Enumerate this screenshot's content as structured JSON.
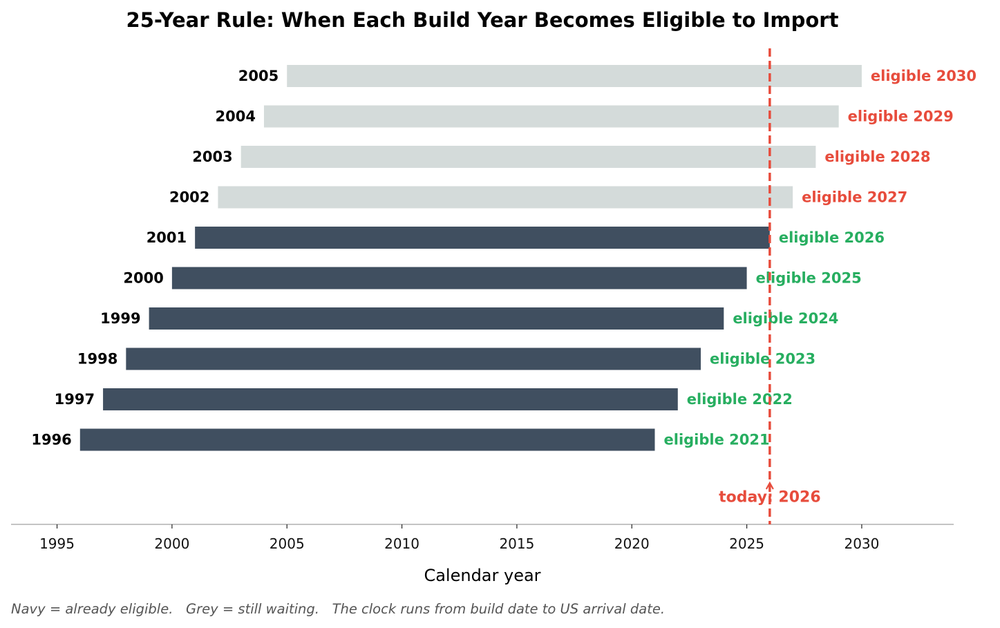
{
  "chart_data": {
    "type": "bar",
    "orientation": "horizontal",
    "title": "25-Year Rule: When Each Build Year Becomes Eligible to Import",
    "xlabel": "Calendar year",
    "ylabel": "",
    "xlim": [
      1993,
      2034
    ],
    "xticks": [
      1995,
      2000,
      2005,
      2010,
      2015,
      2020,
      2025,
      2030
    ],
    "grid": false,
    "categories": [
      "1996",
      "1997",
      "1998",
      "1999",
      "2000",
      "2001",
      "2002",
      "2003",
      "2004",
      "2005"
    ],
    "series": [
      {
        "values": [
          {
            "start": 1996,
            "end": 2021
          },
          {
            "start": 1997,
            "end": 2022
          },
          {
            "start": 1998,
            "end": 2023
          },
          {
            "start": 1999,
            "end": 2024
          },
          {
            "start": 2000,
            "end": 2025
          },
          {
            "start": 2001,
            "end": 2026
          },
          {
            "start": 2002,
            "end": 2027
          },
          {
            "start": 2003,
            "end": 2028
          },
          {
            "start": 2004,
            "end": 2029
          },
          {
            "start": 2005,
            "end": 2030
          }
        ]
      }
    ],
    "bar_labels": [
      "eligible 2021",
      "eligible 2022",
      "eligible 2023",
      "eligible 2024",
      "eligible 2025",
      "eligible 2026",
      "eligible 2027",
      "eligible 2028",
      "eligible 2029",
      "eligible 2030"
    ],
    "status": [
      "eligible",
      "eligible",
      "eligible",
      "eligible",
      "eligible",
      "eligible",
      "waiting",
      "waiting",
      "waiting",
      "waiting"
    ],
    "reference_line": {
      "x": 2026,
      "label": "today: 2026"
    },
    "colors": {
      "eligible_bar": "#404f60",
      "waiting_bar": "#d4dbda",
      "eligible_text": "#27ae60",
      "waiting_text": "#e74c3c",
      "today_line": "#e74c3c"
    }
  },
  "footnote": "Navy = already eligible.   Grey = still waiting.   The clock runs from build date to US arrival date."
}
